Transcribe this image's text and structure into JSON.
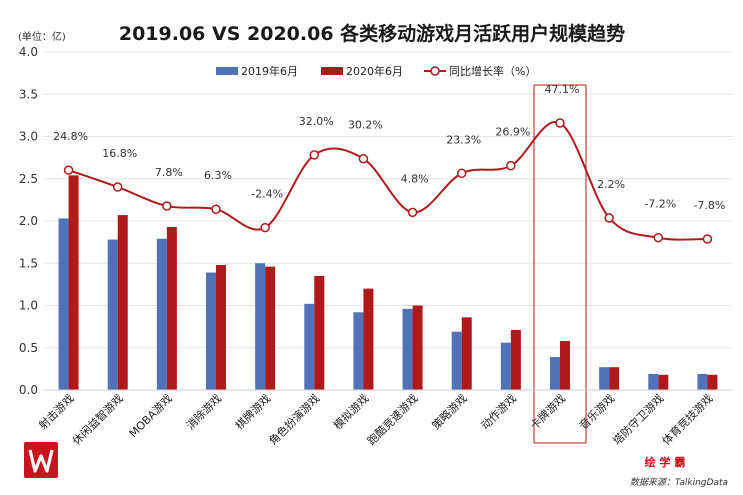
{
  "chart_data": {
    "type": "bar",
    "title": "2019.06 VS 2020.06  各类移动游戏月活跃用户规模趋势",
    "unit_label": "(单位：亿)",
    "ylim": [
      0,
      4.0
    ],
    "yticks": [
      "0.0",
      "0.5",
      "1.0",
      "1.5",
      "2.0",
      "2.5",
      "3.0",
      "3.5",
      "4.0"
    ],
    "categories": [
      "射击游戏",
      "休闲益智游戏",
      "MOBA游戏",
      "消除游戏",
      "棋牌游戏",
      "角色扮演游戏",
      "模拟游戏",
      "跑酷竞速游戏",
      "策略游戏",
      "动作游戏",
      "卡牌游戏",
      "音乐游戏",
      "塔防守卫游戏",
      "体育竞技游戏"
    ],
    "series": [
      {
        "name": "2019年6月",
        "color": "#4f72b8",
        "values": [
          2.03,
          1.78,
          1.79,
          1.39,
          1.5,
          1.02,
          0.92,
          0.96,
          0.69,
          0.56,
          0.39,
          0.27,
          0.19,
          0.19
        ]
      },
      {
        "name": "2020年6月",
        "color": "#b01a1a",
        "values": [
          2.54,
          2.07,
          1.93,
          1.48,
          1.46,
          1.35,
          1.2,
          1.0,
          0.86,
          0.71,
          0.58,
          0.27,
          0.18,
          0.18
        ]
      }
    ],
    "growth": {
      "name": "同比增长率（%）",
      "color": "#b01a1a",
      "labels": [
        "24.8%",
        "16.8%",
        "7.8%",
        "6.3%",
        "-2.4%",
        "32.0%",
        "30.2%",
        "4.8%",
        "23.3%",
        "26.9%",
        "47.1%",
        "2.2%",
        "-7.2%",
        "-7.8%"
      ],
      "values": [
        24.8,
        16.8,
        7.8,
        6.3,
        -2.4,
        32.0,
        30.2,
        4.8,
        23.3,
        26.9,
        47.1,
        2.2,
        -7.2,
        -7.8
      ]
    },
    "highlight_category": "卡牌游戏",
    "legend_position": "top-center"
  },
  "source": "数据来源：TalkingData",
  "watermark": "绘 学 霸",
  "colors": {
    "bar2019": "#4f72b8",
    "bar2020": "#b01a1a",
    "line": "#b01a1a"
  },
  "logo_icon": "logo-w-icon"
}
